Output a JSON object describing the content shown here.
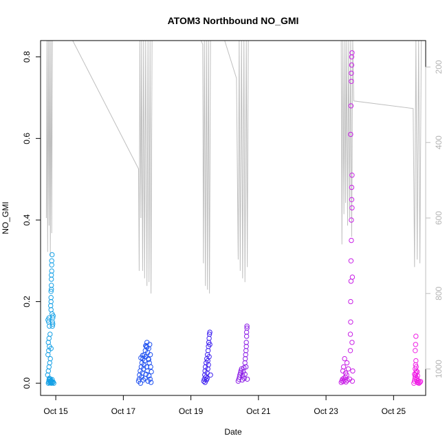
{
  "chart_data": {
    "type": "scatter",
    "title": "ATOM3 Northbound NO_GMI",
    "xlabel": "Date",
    "ylabel": "NO_GMI",
    "x_range": [
      14.55,
      25.95
    ],
    "ylim": [
      -0.03,
      0.84
    ],
    "x_ticks": [
      {
        "value": 15,
        "label": "Oct 15"
      },
      {
        "value": 17,
        "label": "Oct 17"
      },
      {
        "value": 19,
        "label": "Oct 19"
      },
      {
        "value": 21,
        "label": "Oct 21"
      },
      {
        "value": 23,
        "label": "Oct 23"
      },
      {
        "value": 25,
        "label": "Oct 25"
      }
    ],
    "y_ticks": [
      {
        "value": 0.0,
        "label": "0.0"
      },
      {
        "value": 0.2,
        "label": "0.2"
      },
      {
        "value": 0.4,
        "label": "0.4"
      },
      {
        "value": 0.6,
        "label": "0.6"
      },
      {
        "value": 0.8,
        "label": "0.8"
      }
    ],
    "secondary_y": {
      "range": [
        1070,
        130
      ],
      "color": "#bebebe",
      "ticks": [
        {
          "value": 200,
          "label": "200"
        },
        {
          "value": 400,
          "label": "400"
        },
        {
          "value": 600,
          "label": "600"
        },
        {
          "value": 800,
          "label": "800"
        },
        {
          "value": 1000,
          "label": "1000"
        }
      ],
      "line": [
        [
          14.72,
          600
        ],
        [
          14.74,
          130
        ],
        [
          14.76,
          690
        ],
        [
          14.78,
          130
        ],
        [
          14.8,
          620
        ],
        [
          14.82,
          130
        ],
        [
          14.84,
          700
        ],
        [
          14.86,
          130
        ],
        [
          14.88,
          640
        ],
        [
          14.9,
          130
        ],
        [
          15.5,
          130
        ],
        [
          17.45,
          470
        ],
        [
          17.47,
          740
        ],
        [
          17.49,
          130
        ],
        [
          17.52,
          600
        ],
        [
          17.54,
          130
        ],
        [
          17.57,
          740
        ],
        [
          17.6,
          130
        ],
        [
          17.63,
          760
        ],
        [
          17.66,
          130
        ],
        [
          17.7,
          780
        ],
        [
          17.73,
          130
        ],
        [
          17.76,
          770
        ],
        [
          17.79,
          130
        ],
        [
          17.82,
          800
        ],
        [
          17.85,
          130
        ],
        [
          19.3,
          130
        ],
        [
          19.35,
          140
        ],
        [
          19.37,
          720
        ],
        [
          19.4,
          130
        ],
        [
          19.43,
          780
        ],
        [
          19.46,
          130
        ],
        [
          19.49,
          790
        ],
        [
          19.52,
          130
        ],
        [
          19.55,
          800
        ],
        [
          19.58,
          130
        ],
        [
          20.0,
          130
        ],
        [
          20.35,
          230
        ],
        [
          20.4,
          710
        ],
        [
          20.43,
          130
        ],
        [
          20.46,
          740
        ],
        [
          20.5,
          130
        ],
        [
          20.53,
          760
        ],
        [
          20.57,
          130
        ],
        [
          20.6,
          770
        ],
        [
          20.64,
          130
        ],
        [
          20.67,
          730
        ],
        [
          20.7,
          130
        ],
        [
          23.45,
          130
        ],
        [
          23.47,
          670
        ],
        [
          23.5,
          130
        ],
        [
          23.53,
          590
        ],
        [
          23.56,
          130
        ],
        [
          23.58,
          560
        ],
        [
          23.61,
          130
        ],
        [
          23.64,
          620
        ],
        [
          23.67,
          130
        ],
        [
          23.7,
          600
        ],
        [
          23.73,
          130
        ],
        [
          23.76,
          650
        ],
        [
          23.79,
          130
        ],
        [
          23.82,
          290
        ],
        [
          25.58,
          310
        ],
        [
          25.62,
          730
        ],
        [
          25.66,
          130
        ],
        [
          25.7,
          710
        ],
        [
          25.74,
          130
        ],
        [
          25.78,
          720
        ],
        [
          25.82,
          130
        ]
      ]
    },
    "series": [
      {
        "color": "#14a0e6",
        "points": [
          [
            14.78,
            0.0
          ],
          [
            14.79,
            0.003
          ],
          [
            14.8,
            0.008
          ],
          [
            14.81,
            0.012
          ],
          [
            14.82,
            0.001
          ],
          [
            14.83,
            0.005
          ],
          [
            14.84,
            0.01
          ],
          [
            14.85,
            0.002
          ],
          [
            14.86,
            0.006
          ],
          [
            14.87,
            0.0
          ],
          [
            14.88,
            0.004
          ],
          [
            14.89,
            0.009
          ],
          [
            14.9,
            0.001
          ],
          [
            14.92,
            0.003
          ],
          [
            14.94,
            0.0
          ],
          [
            14.76,
            0.02
          ],
          [
            14.78,
            0.03
          ],
          [
            14.8,
            0.04
          ],
          [
            14.82,
            0.05
          ],
          [
            14.84,
            0.06
          ],
          [
            14.77,
            0.07
          ],
          [
            14.79,
            0.08
          ],
          [
            14.81,
            0.09
          ],
          [
            14.86,
            0.085
          ],
          [
            14.78,
            0.1
          ],
          [
            14.8,
            0.11
          ],
          [
            14.83,
            0.12
          ],
          [
            14.79,
            0.15
          ],
          [
            14.8,
            0.16
          ],
          [
            14.81,
            0.14
          ],
          [
            14.77,
            0.155
          ],
          [
            14.9,
            0.15
          ],
          [
            14.91,
            0.16
          ],
          [
            14.92,
            0.165
          ],
          [
            14.9,
            0.14
          ],
          [
            14.91,
            0.145
          ],
          [
            14.89,
            0.17
          ],
          [
            14.85,
            0.19
          ],
          [
            14.86,
            0.2
          ],
          [
            14.86,
            0.21
          ],
          [
            14.86,
            0.225
          ],
          [
            14.87,
            0.24
          ],
          [
            14.87,
            0.255
          ],
          [
            14.87,
            0.265
          ],
          [
            14.88,
            0.275
          ],
          [
            14.88,
            0.29
          ],
          [
            14.88,
            0.3
          ],
          [
            14.89,
            0.315
          ],
          [
            14.86,
            0.18
          ],
          [
            14.87,
            0.23
          ]
        ]
      },
      {
        "color": "#1e50f0",
        "points": [
          [
            17.45,
            0.005
          ],
          [
            17.47,
            0.01
          ],
          [
            17.48,
            0.02
          ],
          [
            17.5,
            0.03
          ],
          [
            17.51,
            0.0
          ],
          [
            17.53,
            0.04
          ],
          [
            17.54,
            0.015
          ],
          [
            17.55,
            0.05
          ],
          [
            17.56,
            0.025
          ],
          [
            17.58,
            0.06
          ],
          [
            17.59,
            0.008
          ],
          [
            17.6,
            0.035
          ],
          [
            17.61,
            0.045
          ],
          [
            17.62,
            0.07
          ],
          [
            17.63,
            0.055
          ],
          [
            17.64,
            0.012
          ],
          [
            17.65,
            0.08
          ],
          [
            17.66,
            0.065
          ],
          [
            17.67,
            0.022
          ],
          [
            17.68,
            0.09
          ],
          [
            17.69,
            0.04
          ],
          [
            17.7,
            0.1
          ],
          [
            17.71,
            0.03
          ],
          [
            17.72,
            0.075
          ],
          [
            17.73,
            0.005
          ],
          [
            17.74,
            0.06
          ],
          [
            17.75,
            0.085
          ],
          [
            17.76,
            0.018
          ],
          [
            17.77,
            0.05
          ],
          [
            17.78,
            0.095
          ],
          [
            17.79,
            0.01
          ],
          [
            17.8,
            0.07
          ],
          [
            17.81,
            0.04
          ],
          [
            17.82,
            0.002
          ],
          [
            17.83,
            0.028
          ],
          [
            17.52,
            0.062
          ],
          [
            17.57,
            0.068
          ],
          [
            17.66,
            0.092
          ],
          [
            17.7,
            0.088
          ],
          [
            17.75,
            0.058
          ]
        ]
      },
      {
        "color": "#3c1ef0",
        "points": [
          [
            19.38,
            0.005
          ],
          [
            19.4,
            0.01
          ],
          [
            19.41,
            0.02
          ],
          [
            19.42,
            0.03
          ],
          [
            19.43,
            0.04
          ],
          [
            19.44,
            0.015
          ],
          [
            19.45,
            0.05
          ],
          [
            19.46,
            0.008
          ],
          [
            19.47,
            0.06
          ],
          [
            19.48,
            0.025
          ],
          [
            19.49,
            0.07
          ],
          [
            19.5,
            0.035
          ],
          [
            19.51,
            0.08
          ],
          [
            19.52,
            0.09
          ],
          [
            19.53,
            0.1
          ],
          [
            19.54,
            0.11
          ],
          [
            19.55,
            0.12
          ],
          [
            19.56,
            0.125
          ],
          [
            19.52,
            0.045
          ],
          [
            19.54,
            0.065
          ],
          [
            19.42,
            0.002
          ],
          [
            19.48,
            0.012
          ],
          [
            19.5,
            0.055
          ],
          [
            19.56,
            0.095
          ],
          [
            19.58,
            0.02
          ]
        ]
      },
      {
        "color": "#8c1ee6",
        "points": [
          [
            20.4,
            0.005
          ],
          [
            20.42,
            0.01
          ],
          [
            20.44,
            0.015
          ],
          [
            20.45,
            0.02
          ],
          [
            20.47,
            0.025
          ],
          [
            20.48,
            0.03
          ],
          [
            20.5,
            0.035
          ],
          [
            20.52,
            0.008
          ],
          [
            20.53,
            0.018
          ],
          [
            20.55,
            0.028
          ],
          [
            20.57,
            0.038
          ],
          [
            20.58,
            0.012
          ],
          [
            20.6,
            0.05
          ],
          [
            20.61,
            0.06
          ],
          [
            20.62,
            0.07
          ],
          [
            20.63,
            0.08
          ],
          [
            20.64,
            0.09
          ],
          [
            20.64,
            0.1
          ],
          [
            20.65,
            0.115
          ],
          [
            20.65,
            0.125
          ],
          [
            20.66,
            0.135
          ],
          [
            20.66,
            0.14
          ],
          [
            20.63,
            0.04
          ],
          [
            20.6,
            0.022
          ],
          [
            20.67,
            0.01
          ]
        ]
      },
      {
        "color": "#c81ee6",
        "points": [
          [
            23.45,
            0.002
          ],
          [
            23.47,
            0.006
          ],
          [
            23.49,
            0.01
          ],
          [
            23.51,
            0.004
          ],
          [
            23.53,
            0.012
          ],
          [
            23.55,
            0.008
          ],
          [
            23.57,
            0.015
          ],
          [
            23.59,
            0.003
          ],
          [
            23.61,
            0.02
          ],
          [
            23.63,
            0.007
          ],
          [
            23.5,
            0.03
          ],
          [
            23.52,
            0.04
          ],
          [
            23.55,
            0.06
          ],
          [
            23.58,
            0.025
          ],
          [
            23.62,
            0.05
          ],
          [
            23.66,
            0.035
          ],
          [
            23.7,
            0.01
          ],
          [
            23.72,
            0.08
          ],
          [
            23.72,
            0.12
          ],
          [
            23.73,
            0.15
          ],
          [
            23.73,
            0.2
          ],
          [
            23.74,
            0.25
          ],
          [
            23.74,
            0.3
          ],
          [
            23.75,
            0.35
          ],
          [
            23.75,
            0.4
          ],
          [
            23.76,
            0.45
          ],
          [
            23.76,
            0.48
          ],
          [
            23.77,
            0.51
          ],
          [
            23.73,
            0.61
          ],
          [
            23.74,
            0.68
          ],
          [
            23.75,
            0.74
          ],
          [
            23.75,
            0.76
          ],
          [
            23.76,
            0.78
          ],
          [
            23.76,
            0.8
          ],
          [
            23.77,
            0.81
          ],
          [
            23.77,
            0.1
          ],
          [
            23.78,
            0.005
          ],
          [
            23.79,
            0.03
          ],
          [
            23.78,
            0.26
          ],
          [
            23.77,
            0.43
          ]
        ]
      },
      {
        "color": "#f01ee6",
        "points": [
          [
            25.6,
            0.0
          ],
          [
            25.62,
            0.005
          ],
          [
            25.63,
            0.01
          ],
          [
            25.64,
            0.015
          ],
          [
            25.65,
            0.02
          ],
          [
            25.66,
            0.025
          ],
          [
            25.67,
            0.03
          ],
          [
            25.68,
            0.008
          ],
          [
            25.69,
            0.012
          ],
          [
            25.7,
            0.003
          ],
          [
            25.71,
            0.018
          ],
          [
            25.72,
            0.001
          ],
          [
            25.73,
            0.006
          ],
          [
            25.75,
            0.0
          ],
          [
            25.78,
            0.002
          ],
          [
            25.64,
            0.035
          ],
          [
            25.65,
            0.045
          ],
          [
            25.66,
            0.055
          ],
          [
            25.64,
            0.08
          ],
          [
            25.65,
            0.095
          ],
          [
            25.66,
            0.115
          ],
          [
            25.67,
            0.04
          ],
          [
            25.62,
            0.022
          ],
          [
            25.7,
            0.028
          ],
          [
            25.8,
            0.004
          ]
        ]
      }
    ]
  }
}
